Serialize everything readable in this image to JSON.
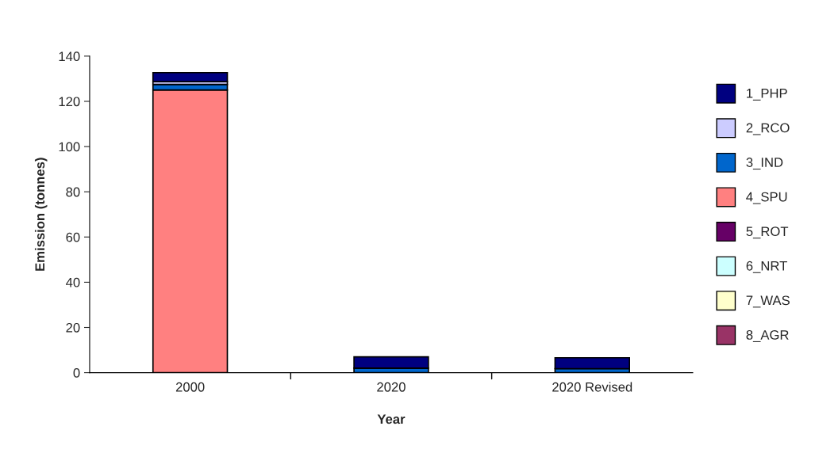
{
  "chart_data": {
    "type": "bar",
    "stacked": true,
    "xlabel": "Year",
    "ylabel": "Emission (tonnes)",
    "categories": [
      "2000",
      "2020",
      "2020 Revised"
    ],
    "series": [
      {
        "name": "8_AGR",
        "color": "#993366",
        "values": [
          0,
          0,
          0
        ]
      },
      {
        "name": "7_WAS",
        "color": "#ffffcc",
        "values": [
          0,
          0,
          0
        ]
      },
      {
        "name": "6_NRT",
        "color": "#ccffff",
        "values": [
          0,
          0,
          0
        ]
      },
      {
        "name": "5_ROT",
        "color": "#660066",
        "values": [
          null,
          null,
          null
        ]
      },
      {
        "name": "4_SPU",
        "color": "#ff8080",
        "values": [
          125,
          0,
          0
        ]
      },
      {
        "name": "3_IND",
        "color": "#0066cc",
        "values": [
          2.5,
          2.0,
          1.8
        ]
      },
      {
        "name": "2_RCO",
        "color": "#ccccff",
        "values": [
          1.2,
          null,
          null
        ]
      },
      {
        "name": "1_PHP",
        "color": "#000080",
        "values": [
          4.0,
          5.0,
          4.8
        ]
      }
    ],
    "ylim": [
      0,
      140
    ],
    "yticks": [
      0,
      20,
      40,
      60,
      80,
      100,
      120,
      140
    ],
    "grid": false,
    "legend": "right"
  }
}
